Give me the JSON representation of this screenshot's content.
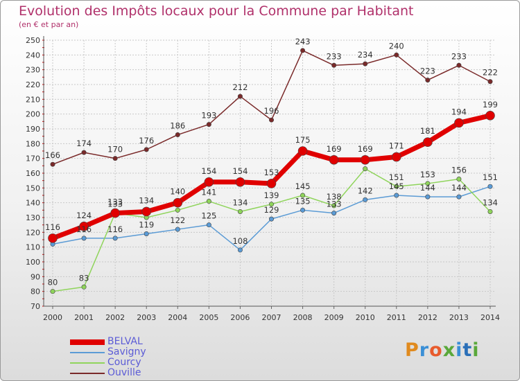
{
  "chart_data": {
    "type": "line",
    "title": "Evolution des Impôts locaux pour la Commune par Habitant",
    "subtitle": "(en € et par an)",
    "x": [
      "2000",
      "2001",
      "2002",
      "2003",
      "2004",
      "2005",
      "2006",
      "2007",
      "2008",
      "2009",
      "2010",
      "2011",
      "2012",
      "2013",
      "2014"
    ],
    "ylim": [
      70,
      250
    ],
    "yticks": [
      "70",
      "80",
      "90",
      "100",
      "110",
      "120",
      "130",
      "140",
      "150",
      "160",
      "170",
      "180",
      "190",
      "200",
      "210",
      "220",
      "230",
      "240",
      "250"
    ],
    "grid": true,
    "series": [
      {
        "name": "Ouville",
        "color": "#7a2a2a",
        "values": [
          166,
          174,
          170,
          176,
          186,
          193,
          212,
          196,
          243,
          233,
          234,
          240,
          223,
          233,
          222
        ]
      },
      {
        "name": "Savigny",
        "color": "#5b9bd5",
        "values": [
          112,
          116,
          116,
          119,
          122,
          125,
          108,
          129,
          135,
          133,
          142,
          145,
          144,
          144,
          151
        ]
      },
      {
        "name": "Courcy",
        "color": "#8fd45b",
        "values": [
          80,
          83,
          133,
          130,
          135,
          141,
          134,
          139,
          145,
          138,
          163,
          151,
          153,
          156,
          134
        ]
      },
      {
        "name": "BELVAL",
        "color": "#e00000",
        "values": [
          116,
          124,
          133,
          134,
          140,
          154,
          154,
          153,
          175,
          169,
          169,
          171,
          181,
          194,
          199
        ]
      }
    ],
    "data_labels": {
      "Ouville": [
        "166",
        "174",
        "170",
        "176",
        "186",
        "193",
        "212",
        "196",
        "243",
        "233",
        "234",
        "240",
        "223",
        "233",
        "222"
      ],
      "Savigny": [
        "",
        "116",
        "116",
        "119",
        "122",
        "125",
        "108",
        "129",
        "135",
        "133",
        "142",
        "145",
        "144",
        "144",
        "151"
      ],
      "Courcy": [
        "80",
        "83",
        "133",
        "",
        "",
        "141",
        "134",
        "139",
        "145",
        "138",
        "",
        "151",
        "153",
        "156",
        "134"
      ],
      "BELVAL": [
        "116",
        "124",
        "133",
        "134",
        "140",
        "154",
        "154",
        "153",
        "175",
        "169",
        "169",
        "171",
        "181",
        "194",
        "199"
      ]
    },
    "legend": [
      "BELVAL",
      "Savigny",
      "Courcy",
      "Ouville"
    ],
    "legend_position": "bottom-left"
  },
  "brand": {
    "letters": [
      "P",
      "r",
      "o",
      "x",
      "i",
      "t",
      "i"
    ]
  }
}
